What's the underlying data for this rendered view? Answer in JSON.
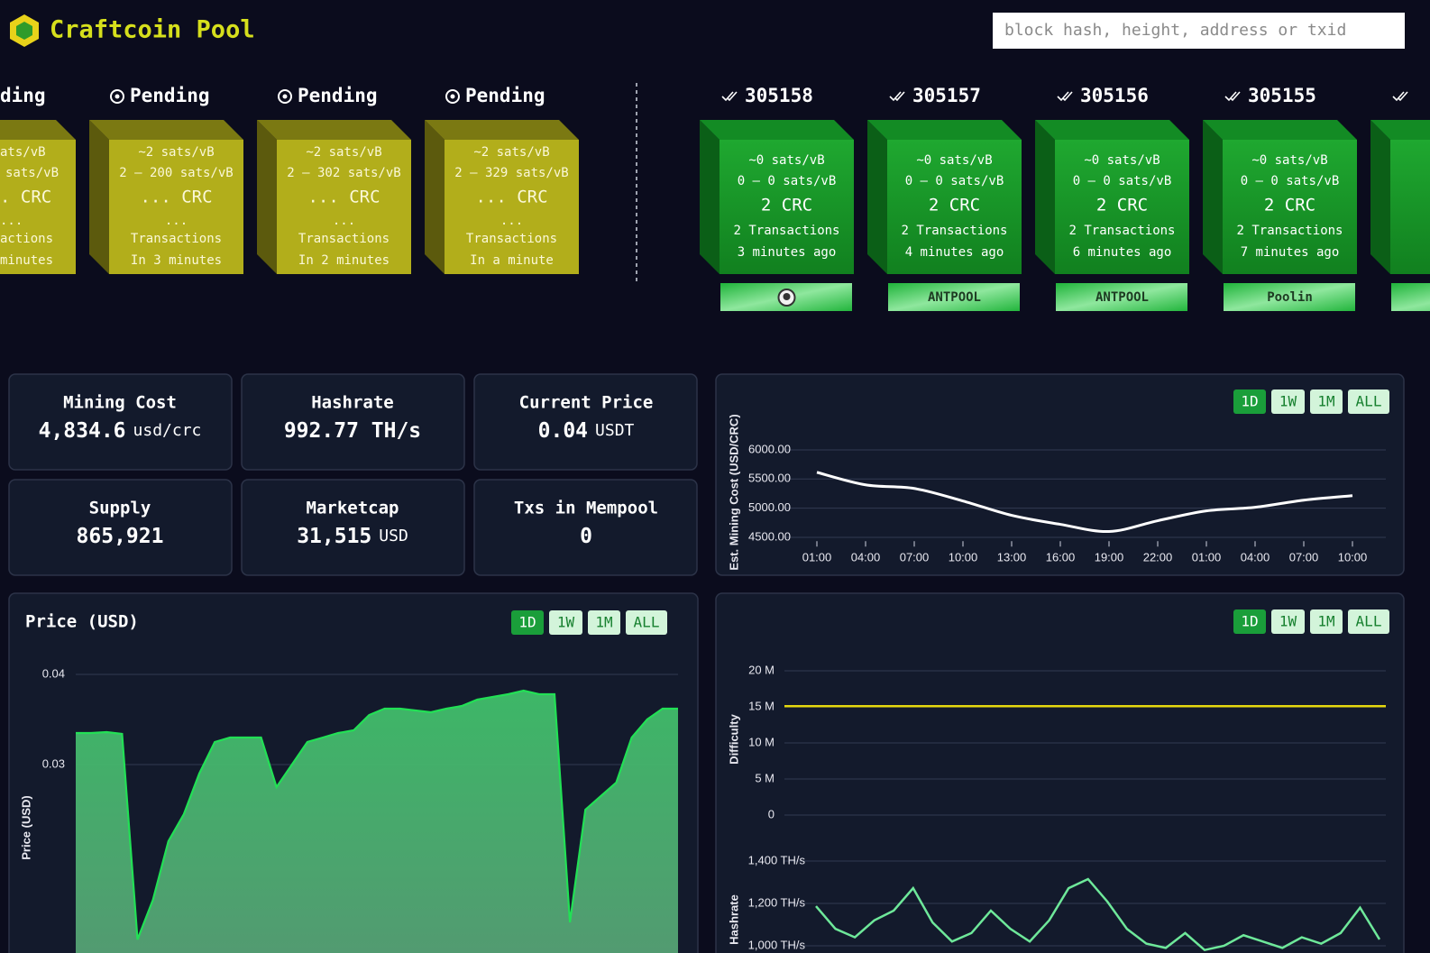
{
  "header": {
    "logo": "Craftcoin Pool",
    "search_placeholder": "block hash, height, address or txid"
  },
  "pending_partial": {
    "status": "ding",
    "fee": "ats/vB",
    "range": "sats/vB",
    "reward": ". CRC",
    "tx_count": "...",
    "tx_label": "actions",
    "time": "minutes"
  },
  "pending_blocks": [
    {
      "status": "Pending",
      "fee": "~2 sats/vB",
      "range": "2 – 200 sats/vB",
      "reward": "... CRC",
      "tx_count": "...",
      "tx_label": "Transactions",
      "time": "In 3 minutes"
    },
    {
      "status": "Pending",
      "fee": "~2 sats/vB",
      "range": "2 – 302 sats/vB",
      "reward": "... CRC",
      "tx_count": "...",
      "tx_label": "Transactions",
      "time": "In 2 minutes"
    },
    {
      "status": "Pending",
      "fee": "~2 sats/vB",
      "range": "2 – 329 sats/vB",
      "reward": "... CRC",
      "tx_count": "...",
      "tx_label": "Transactions",
      "time": "In a minute"
    }
  ],
  "mined_blocks": [
    {
      "height": "305158",
      "fee": "~0 sats/vB",
      "range": "0 – 0 sats/vB",
      "reward": "2 CRC",
      "transactions": "2 Transactions",
      "time": "3 minutes ago"
    },
    {
      "height": "305157",
      "fee": "~0 sats/vB",
      "range": "0 – 0 sats/vB",
      "reward": "2 CRC",
      "transactions": "2 Transactions",
      "time": "4 minutes ago",
      "pool": "ANTPOOL"
    },
    {
      "height": "305156",
      "fee": "~0 sats/vB",
      "range": "0 – 0 sats/vB",
      "reward": "2 CRC",
      "transactions": "2 Transactions",
      "time": "6 minutes ago",
      "pool": "ANTPOOL"
    },
    {
      "height": "305155",
      "fee": "~0 sats/vB",
      "range": "0 – 0 sats/vB",
      "reward": "2 CRC",
      "transactions": "2 Transactions",
      "time": "7 minutes ago",
      "pool": "Poolin"
    }
  ],
  "stats": [
    {
      "label": "Mining Cost",
      "value": "4,834.6",
      "unit": "usd/crc"
    },
    {
      "label": "Hashrate",
      "value": "992.77 TH/s"
    },
    {
      "label": "Current Price",
      "value": "0.04",
      "unit": "USDT"
    },
    {
      "label": "Supply",
      "value": "865,921"
    },
    {
      "label": "Marketcap",
      "value": "31,515",
      "unit": "USD"
    },
    {
      "label": "Txs in Mempool",
      "value": "0"
    }
  ],
  "range_buttons": [
    "1D",
    "1W",
    "1M",
    "ALL"
  ],
  "chart_data": [
    {
      "type": "line",
      "y_label": "Est. Mining Cost (USD/CRC)",
      "categories": [
        "01:00",
        "04:00",
        "07:00",
        "10:00",
        "13:00",
        "16:00",
        "19:00",
        "22:00",
        "01:00",
        "04:00",
        "07:00",
        "10:00"
      ],
      "series": [
        {
          "color": "#ffffff",
          "values": [
            5615,
            5400,
            5338,
            5123,
            4877,
            4723,
            4600,
            4785,
            4954,
            5015,
            5138,
            5215
          ]
        }
      ],
      "ylim": [
        4450,
        6100
      ],
      "yticks": [
        {
          "value": 4500,
          "label": "4500.00"
        },
        {
          "value": 5000,
          "label": "5000.00"
        },
        {
          "value": 5500,
          "label": "5500.00"
        },
        {
          "value": 6000,
          "label": "6000.00"
        }
      ],
      "grid": true
    },
    {
      "type": "area",
      "title": "Price (USD)",
      "y_label": "Price (USD)",
      "series": [
        {
          "color": "#22e055",
          "values": [
            0.0335,
            0.0335,
            0.0336,
            0.0334,
            0.0106,
            0.015,
            0.0215,
            0.0245,
            0.029,
            0.0325,
            0.033,
            0.033,
            0.033,
            0.0275,
            0.03,
            0.0325,
            0.033,
            0.0335,
            0.0338,
            0.0355,
            0.0362,
            0.0362,
            0.036,
            0.0358,
            0.0362,
            0.0365,
            0.0372,
            0.0375,
            0.0378,
            0.0382,
            0.0378,
            0.0378,
            0.0125,
            0.025,
            0.0265,
            0.028,
            0.033,
            0.035,
            0.0362,
            0.0362
          ]
        }
      ],
      "ylim": [
        0.01,
        0.042
      ],
      "yticks": [
        0.03,
        0.04
      ],
      "grid": true
    },
    {
      "type": "line",
      "y_label": "Difficulty",
      "series": [
        {
          "color": "#e5d80f",
          "values": [
            15100000,
            15100000,
            15100000,
            15100000,
            15100000,
            15100000,
            15100000,
            15100000,
            15100000,
            15100000
          ]
        }
      ],
      "ylim": [
        0,
        20000000
      ],
      "yticks": [
        0,
        {
          "value": 5000000,
          "label": "5 M"
        },
        {
          "value": 10000000,
          "label": "10 M"
        },
        {
          "value": 15000000,
          "label": "15 M"
        },
        {
          "value": 20000000,
          "label": "20 M"
        }
      ],
      "grid": true
    },
    {
      "type": "line",
      "y_label": "Hashrate",
      "series": [
        {
          "color": "#6ee89a",
          "values": [
            1187,
            1080,
            1040,
            1120,
            1166,
            1272,
            1110,
            1020,
            1060,
            1166,
            1080,
            1020,
            1120,
            1272,
            1315,
            1208,
            1080,
            1010,
            990,
            1060,
            980,
            1000,
            1050,
            1020,
            990,
            1040,
            1010,
            1060,
            1180,
            1030
          ]
        }
      ],
      "ylim": [
        1000,
        1400
      ],
      "yticks": [
        {
          "value": 1000,
          "label": "1,000 TH/s"
        },
        {
          "value": 1200,
          "label": "1,200 TH/s"
        },
        {
          "value": 1400,
          "label": "1,400 TH/s"
        }
      ],
      "grid": true
    }
  ]
}
